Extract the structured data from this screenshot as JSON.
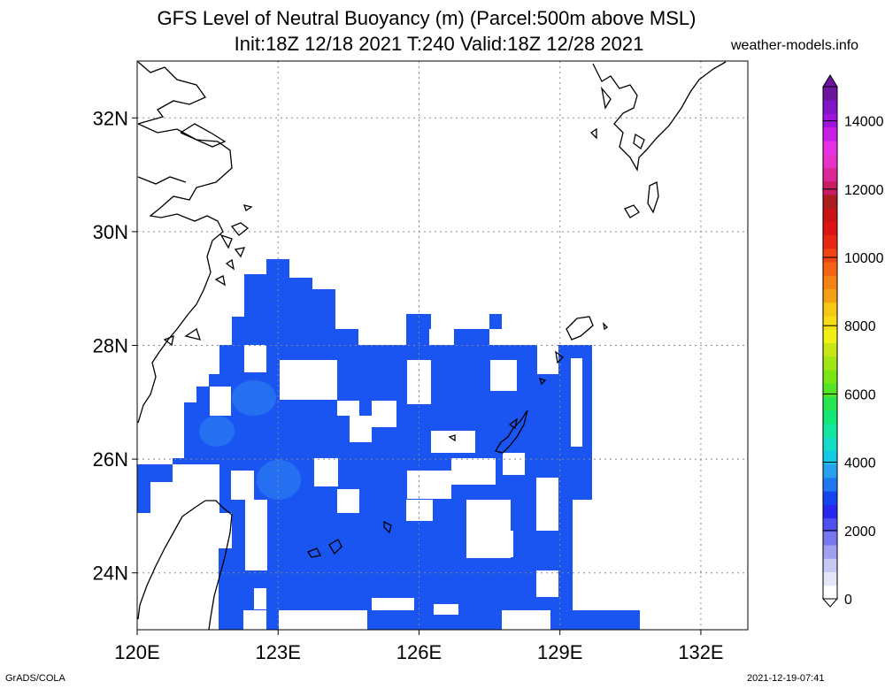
{
  "title": {
    "line1": "GFS Level of Neutral Buoyancy (m) (Parcel:500m above MSL)",
    "line2": "Init:18Z 12/18 2021 T:240 Valid:18Z 12/28 2021"
  },
  "credit": "weather-models.info",
  "footer": {
    "left": "GrADS/COLA",
    "right": "2021-12-19-07:41"
  },
  "map": {
    "lon_range": [
      120,
      133
    ],
    "lat_range": [
      23,
      33
    ],
    "lon_ticks": [
      {
        "value": 120,
        "label": "120E"
      },
      {
        "value": 123,
        "label": "123E"
      },
      {
        "value": 126,
        "label": "126E"
      },
      {
        "value": 129,
        "label": "129E"
      },
      {
        "value": 132,
        "label": "132E"
      }
    ],
    "lat_ticks": [
      {
        "value": 24,
        "label": "24N"
      },
      {
        "value": 26,
        "label": "26N"
      },
      {
        "value": 28,
        "label": "28N"
      },
      {
        "value": 30,
        "label": "30N"
      },
      {
        "value": 32,
        "label": "32N"
      }
    ],
    "grid": true,
    "shading_color": "#1a55f2",
    "shading_light": "#2f86f0",
    "coastline_color": "#000000"
  },
  "colorbar": {
    "labels": [
      "0",
      "2000",
      "4000",
      "6000",
      "8000",
      "10000",
      "12000",
      "14000"
    ],
    "colors": [
      "#ffffff",
      "#e6e6fa",
      "#c8c8f5",
      "#a0a0f0",
      "#7878ee",
      "#5050f0",
      "#2828f0",
      "#1446f0",
      "#1e78f0",
      "#28a0f0",
      "#14c8e6",
      "#14dcc8",
      "#14e6a0",
      "#14e678",
      "#28e650",
      "#50e628",
      "#78e614",
      "#a0e614",
      "#c8e614",
      "#f0f014",
      "#f5dc14",
      "#f5c814",
      "#f5a014",
      "#f58214",
      "#f56414",
      "#f04614",
      "#e62814",
      "#dc1414",
      "#c81414",
      "#aa1e1e",
      "#c81e64",
      "#dc2896",
      "#e632c8",
      "#e632e6",
      "#c81ee6",
      "#a014dc",
      "#8214c8",
      "#6e14a0"
    ],
    "max": 15000
  }
}
